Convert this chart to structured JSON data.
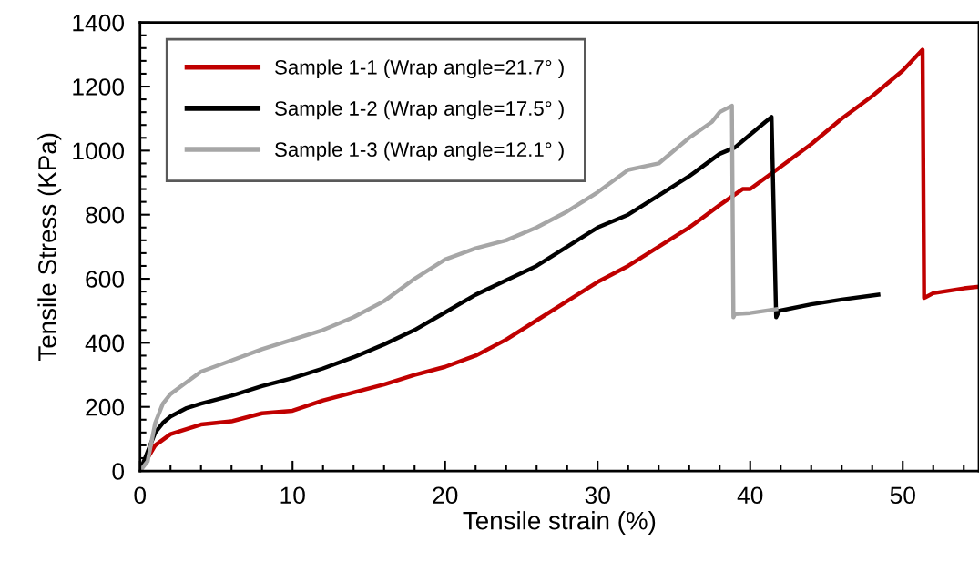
{
  "chart_data": {
    "type": "line",
    "xlabel": "Tensile strain (%)",
    "ylabel": "Tensile Stress (KPa)",
    "xlim": [
      0,
      55
    ],
    "xticks": [
      0,
      10,
      20,
      30,
      40,
      50
    ],
    "ylim": [
      0,
      1400
    ],
    "yticks": [
      0,
      200,
      400,
      600,
      800,
      1000,
      1200,
      1400
    ],
    "grid": false,
    "legend": "top left",
    "marker": "none",
    "line_style": "solid",
    "series": [
      {
        "name": "Sample 1-1 (Wrap angle=21.7° )",
        "color": "#c00000",
        "x": [
          0,
          0.5,
          1,
          2,
          3,
          4,
          6,
          8,
          10,
          12,
          14,
          16,
          18,
          20,
          22,
          24,
          26,
          28,
          30,
          32,
          34,
          36,
          38,
          39.5,
          40,
          42,
          44,
          46,
          48,
          50,
          51.3,
          51.4,
          52,
          54,
          55
        ],
        "values": [
          0,
          40,
          80,
          115,
          130,
          145,
          155,
          180,
          188,
          220,
          245,
          270,
          300,
          325,
          360,
          410,
          470,
          530,
          590,
          640,
          700,
          760,
          830,
          880,
          880,
          950,
          1020,
          1100,
          1170,
          1250,
          1315,
          540,
          555,
          570,
          575
        ]
      },
      {
        "name": "Sample 1-2 (Wrap angle=17.5° )",
        "color": "#000000",
        "x": [
          0,
          0.5,
          1,
          1.5,
          2,
          3,
          4,
          6,
          8,
          10,
          12,
          14,
          16,
          18,
          20,
          22,
          24,
          26,
          28,
          30,
          32,
          34,
          36,
          38,
          39,
          40,
          41,
          41.4,
          41.7,
          41.9,
          44,
          46,
          48.4
        ],
        "values": [
          0,
          60,
          120,
          150,
          170,
          195,
          210,
          235,
          265,
          290,
          320,
          355,
          395,
          440,
          495,
          550,
          595,
          640,
          700,
          760,
          800,
          860,
          920,
          990,
          1010,
          1050,
          1090,
          1105,
          480,
          500,
          520,
          535,
          550
        ]
      },
      {
        "name": "Sample 1-3 (Wrap angle=12.1° )",
        "color": "#a6a6a6",
        "x": [
          0,
          0.5,
          1,
          1.5,
          2,
          3,
          4,
          6,
          8,
          10,
          12,
          14,
          16,
          18,
          20,
          22,
          24,
          26,
          28,
          30,
          32,
          33,
          34,
          36,
          37.5,
          38,
          38.8,
          38.9,
          39,
          40,
          41.7
        ],
        "values": [
          0,
          30,
          150,
          210,
          240,
          275,
          310,
          345,
          380,
          410,
          440,
          480,
          530,
          600,
          660,
          695,
          720,
          760,
          810,
          870,
          940,
          950,
          960,
          1040,
          1090,
          1120,
          1140,
          480,
          490,
          493,
          505
        ]
      }
    ]
  }
}
